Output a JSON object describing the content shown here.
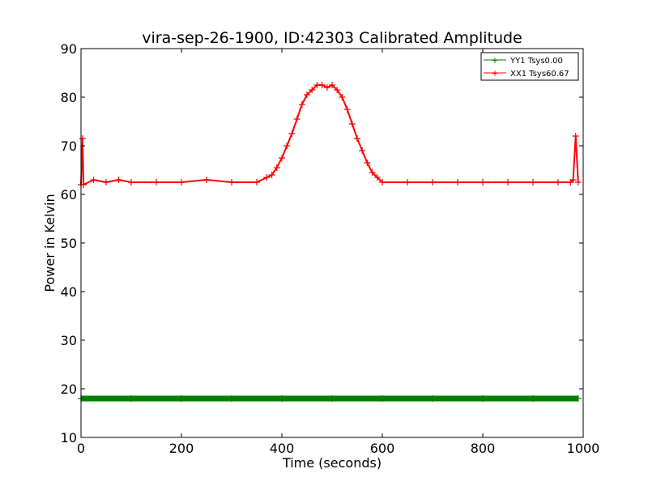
{
  "chart_data": {
    "type": "line",
    "title": "vira-sep-26-1900, ID:42303 Calibrated Amplitude",
    "xlabel": "Time (seconds)",
    "ylabel": "Power in Kelvin",
    "xlim": [
      0,
      1000
    ],
    "ylim": [
      10,
      90
    ],
    "x_ticks": [
      0,
      200,
      400,
      600,
      800,
      1000
    ],
    "y_ticks": [
      10,
      20,
      30,
      40,
      50,
      60,
      70,
      80,
      90
    ],
    "grid": false,
    "legend_position": "top-right",
    "series": [
      {
        "name": "YY1 Tsys0.00",
        "color": "#008000",
        "marker": "+",
        "x": [
          0,
          100,
          200,
          300,
          400,
          500,
          600,
          700,
          800,
          900,
          990
        ],
        "y": [
          18,
          18,
          18,
          18,
          18,
          18,
          18,
          18,
          18,
          18,
          18
        ]
      },
      {
        "name": "XX1 Tsys60.67",
        "color": "#ff0000",
        "marker": "+",
        "x": [
          0,
          3,
          5,
          25,
          50,
          75,
          100,
          150,
          200,
          250,
          300,
          350,
          370,
          380,
          390,
          400,
          410,
          420,
          430,
          440,
          450,
          460,
          470,
          480,
          490,
          500,
          510,
          520,
          530,
          540,
          550,
          560,
          570,
          580,
          590,
          600,
          650,
          700,
          750,
          800,
          850,
          900,
          950,
          975,
          980,
          985,
          990
        ],
        "y": [
          62,
          71.5,
          62,
          63,
          62.5,
          63,
          62.5,
          62.5,
          62.5,
          63,
          62.5,
          62.5,
          63.5,
          64,
          65.5,
          67.5,
          70,
          72.5,
          75.5,
          78.5,
          80.5,
          81.5,
          82.5,
          82.5,
          82,
          82.5,
          81.5,
          80,
          77.5,
          74.5,
          71.5,
          69,
          66.5,
          64.5,
          63.5,
          62.5,
          62.5,
          62.5,
          62.5,
          62.5,
          62.5,
          62.5,
          62.5,
          62.5,
          63,
          72,
          62.5
        ]
      }
    ]
  }
}
